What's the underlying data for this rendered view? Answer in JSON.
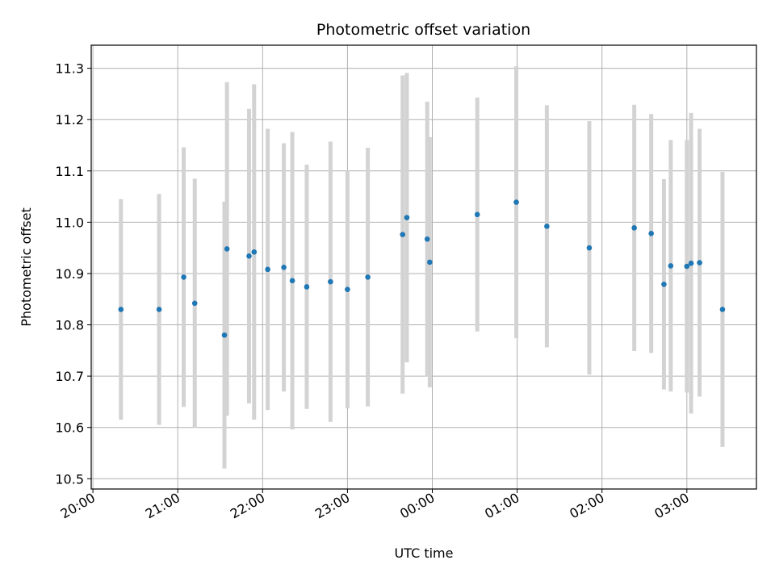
{
  "chart_data": {
    "type": "scatter",
    "title": "Photometric offset variation",
    "xlabel": "UTC time",
    "ylabel": "Photometric offset",
    "x_unit": "hours_since_20:00",
    "xlim_hours": [
      -0.02,
      7.82
    ],
    "ylim": [
      10.48,
      11.345
    ],
    "grid": true,
    "x_tick_labels": [
      "20:00",
      "21:00",
      "22:00",
      "23:00",
      "00:00",
      "01:00",
      "02:00",
      "03:00"
    ],
    "y_tick_labels": [
      "10.5",
      "10.6",
      "10.7",
      "10.8",
      "10.9",
      "11.0",
      "11.1",
      "11.2",
      "11.3"
    ],
    "colors": {
      "point": "#1f77b4",
      "errorbar": "#d3d3d3",
      "grid": "#b0b0b0",
      "axes": "#000000"
    },
    "series": [
      {
        "points": [
          {
            "x": 0.33,
            "y": 10.83,
            "yerr": 0.215
          },
          {
            "x": 0.78,
            "y": 10.83,
            "yerr": 0.225
          },
          {
            "x": 1.07,
            "y": 10.893,
            "yerr": 0.253
          },
          {
            "x": 1.2,
            "y": 10.842,
            "yerr": 0.243
          },
          {
            "x": 1.55,
            "y": 10.78,
            "yerr": 0.26
          },
          {
            "x": 1.58,
            "y": 10.948,
            "yerr": 0.325
          },
          {
            "x": 1.84,
            "y": 10.934,
            "yerr": 0.287
          },
          {
            "x": 1.9,
            "y": 10.942,
            "yerr": 0.327
          },
          {
            "x": 2.06,
            "y": 10.908,
            "yerr": 0.274
          },
          {
            "x": 2.25,
            "y": 10.912,
            "yerr": 0.242
          },
          {
            "x": 2.35,
            "y": 10.886,
            "yerr": 0.29
          },
          {
            "x": 2.52,
            "y": 10.874,
            "yerr": 0.238
          },
          {
            "x": 2.8,
            "y": 10.884,
            "yerr": 0.273
          },
          {
            "x": 3.0,
            "y": 10.869,
            "yerr": 0.232
          },
          {
            "x": 3.24,
            "y": 10.893,
            "yerr": 0.252
          },
          {
            "x": 3.65,
            "y": 10.976,
            "yerr": 0.31
          },
          {
            "x": 3.7,
            "y": 11.009,
            "yerr": 0.282
          },
          {
            "x": 3.94,
            "y": 10.967,
            "yerr": 0.268
          },
          {
            "x": 3.97,
            "y": 10.922,
            "yerr": 0.244
          },
          {
            "x": 4.53,
            "y": 11.015,
            "yerr": 0.228
          },
          {
            "x": 4.99,
            "y": 11.039,
            "yerr": 0.265
          },
          {
            "x": 5.35,
            "y": 10.992,
            "yerr": 0.236
          },
          {
            "x": 5.85,
            "y": 10.95,
            "yerr": 0.247
          },
          {
            "x": 6.38,
            "y": 10.989,
            "yerr": 0.24
          },
          {
            "x": 6.58,
            "y": 10.978,
            "yerr": 0.233
          },
          {
            "x": 6.73,
            "y": 10.879,
            "yerr": 0.205
          },
          {
            "x": 6.81,
            "y": 10.915,
            "yerr": 0.245
          },
          {
            "x": 7.0,
            "y": 10.914,
            "yerr": 0.246
          },
          {
            "x": 7.05,
            "y": 10.92,
            "yerr": 0.293
          },
          {
            "x": 7.15,
            "y": 10.921,
            "yerr": 0.261
          },
          {
            "x": 7.42,
            "y": 10.83,
            "yerr": 0.268
          }
        ]
      }
    ]
  }
}
